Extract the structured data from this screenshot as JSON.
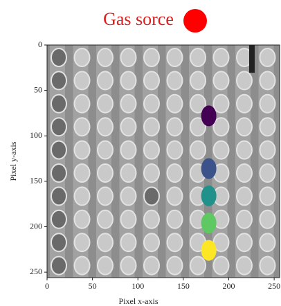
{
  "chart_data": {
    "type": "scatter",
    "title": "Gas sorce",
    "title_color": "#e01b1b",
    "title_marker_color": "#ff0000",
    "x_label": "Pixel x-axis",
    "y_label": "Pixel y-axis",
    "xlim": [
      0,
      256
    ],
    "ylim": [
      0,
      256
    ],
    "y_inverted": true,
    "xticks": [
      0,
      50,
      100,
      150,
      200,
      250
    ],
    "yticks": [
      0,
      50,
      100,
      150,
      200,
      250
    ],
    "series": [
      {
        "x": [
          178,
          178,
          178,
          178,
          178
        ],
        "values": [
          78,
          136,
          166,
          196,
          226
        ],
        "colors": [
          "#440154",
          "#3b528b",
          "#21918c",
          "#5ec962",
          "#fde725"
        ]
      }
    ]
  }
}
